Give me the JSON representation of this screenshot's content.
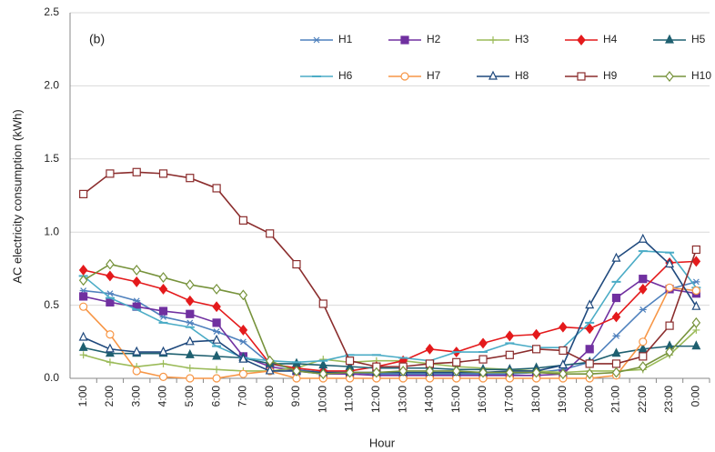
{
  "chart_data": {
    "type": "line",
    "title": "(b)",
    "x_label": "Hour",
    "y_label": "AC electricity consumption (kWh)",
    "categories": [
      "1:00",
      "2:00",
      "3:00",
      "4:00",
      "5:00",
      "6:00",
      "7:00",
      "8:00",
      "9:00",
      "10:00",
      "11:00",
      "12:00",
      "13:00",
      "14:00",
      "15:00",
      "16:00",
      "17:00",
      "18:00",
      "19:00",
      "20:00",
      "21:00",
      "22:00",
      "23:00",
      "0:00"
    ],
    "ylim": [
      0,
      2.5
    ],
    "yticks": [
      {
        "value": 0,
        "label": "0.0"
      },
      0.5,
      {
        "value": 1,
        "label": "1.0"
      },
      1.5,
      {
        "value": 2,
        "label": "2.0"
      },
      2.5
    ],
    "grid": true,
    "series": [
      {
        "name": "H1",
        "color": "#4F81BD",
        "marker": "asterisk",
        "values": [
          0.6,
          0.58,
          0.53,
          0.42,
          0.38,
          0.32,
          0.25,
          0.1,
          0.06,
          0.04,
          0.04,
          0.03,
          0.03,
          0.03,
          0.03,
          0.03,
          0.03,
          0.04,
          0.06,
          0.11,
          0.29,
          0.47,
          0.61,
          0.66
        ]
      },
      {
        "name": "H2",
        "color": "#7030A0",
        "marker": "square",
        "values": [
          0.56,
          0.52,
          0.49,
          0.46,
          0.44,
          0.38,
          0.15,
          0.08,
          0.05,
          0.03,
          0.03,
          0.02,
          0.02,
          0.02,
          0.02,
          0.02,
          0.02,
          0.02,
          0.03,
          0.2,
          0.55,
          0.68,
          0.61,
          0.58
        ]
      },
      {
        "name": "H3",
        "color": "#9BBB59",
        "marker": "plus",
        "values": [
          0.16,
          0.11,
          0.08,
          0.1,
          0.07,
          0.06,
          0.05,
          0.05,
          0.07,
          0.13,
          0.11,
          0.12,
          0.12,
          0.1,
          0.08,
          0.07,
          0.06,
          0.05,
          0.04,
          0.05,
          0.05,
          0.06,
          0.16,
          0.33
        ]
      },
      {
        "name": "H4",
        "color": "#E41A1C",
        "marker": "diamond",
        "values": [
          0.74,
          0.7,
          0.66,
          0.61,
          0.53,
          0.49,
          0.33,
          0.1,
          0.07,
          0.05,
          0.05,
          0.08,
          0.12,
          0.2,
          0.18,
          0.24,
          0.29,
          0.3,
          0.35,
          0.34,
          0.42,
          0.61,
          0.79,
          0.8
        ]
      },
      {
        "name": "H5",
        "color": "#1F6070",
        "marker": "triangle",
        "values": [
          0.21,
          0.17,
          0.17,
          0.17,
          0.16,
          0.15,
          0.14,
          0.1,
          0.1,
          0.09,
          0.08,
          0.07,
          0.07,
          0.07,
          0.06,
          0.06,
          0.06,
          0.07,
          0.09,
          0.11,
          0.17,
          0.2,
          0.22,
          0.22
        ]
      },
      {
        "name": "H6",
        "color": "#4BACC6",
        "marker": "dash",
        "values": [
          0.7,
          0.55,
          0.47,
          0.38,
          0.35,
          0.22,
          0.14,
          0.12,
          0.11,
          0.12,
          0.16,
          0.16,
          0.14,
          0.12,
          0.18,
          0.18,
          0.24,
          0.21,
          0.21,
          0.38,
          0.66,
          0.87,
          0.86,
          0.62
        ]
      },
      {
        "name": "H7",
        "color": "#F79646",
        "marker": "circle-open",
        "values": [
          0.49,
          0.3,
          0.05,
          0.01,
          0,
          0,
          0.03,
          0.05,
          0,
          0,
          0,
          0,
          0,
          0,
          0,
          0,
          0,
          0,
          0,
          0,
          0.02,
          0.25,
          0.62,
          0.6
        ]
      },
      {
        "name": "H8",
        "color": "#1F497D",
        "marker": "triangle-open",
        "values": [
          0.28,
          0.2,
          0.18,
          0.18,
          0.25,
          0.26,
          0.13,
          0.05,
          0.05,
          0.04,
          0.04,
          0.04,
          0.04,
          0.04,
          0.04,
          0.04,
          0.05,
          0.05,
          0.09,
          0.5,
          0.82,
          0.95,
          0.78,
          0.49
        ]
      },
      {
        "name": "H9",
        "color": "#8B2D2D",
        "marker": "square-open",
        "values": [
          1.26,
          1.4,
          1.41,
          1.4,
          1.37,
          1.3,
          1.08,
          0.99,
          0.78,
          0.51,
          0.12,
          0.08,
          0.08,
          0.1,
          0.11,
          0.13,
          0.16,
          0.2,
          0.19,
          0.1,
          0.1,
          0.15,
          0.36,
          0.88
        ]
      },
      {
        "name": "H10",
        "color": "#77933C",
        "marker": "diamond-open",
        "values": [
          0.67,
          0.78,
          0.74,
          0.69,
          0.64,
          0.61,
          0.57,
          0.12,
          0.05,
          0.03,
          0.04,
          0.04,
          0.05,
          0.05,
          0.05,
          0.04,
          0.04,
          0.04,
          0.03,
          0.03,
          0.04,
          0.08,
          0.18,
          0.38
        ]
      }
    ]
  }
}
